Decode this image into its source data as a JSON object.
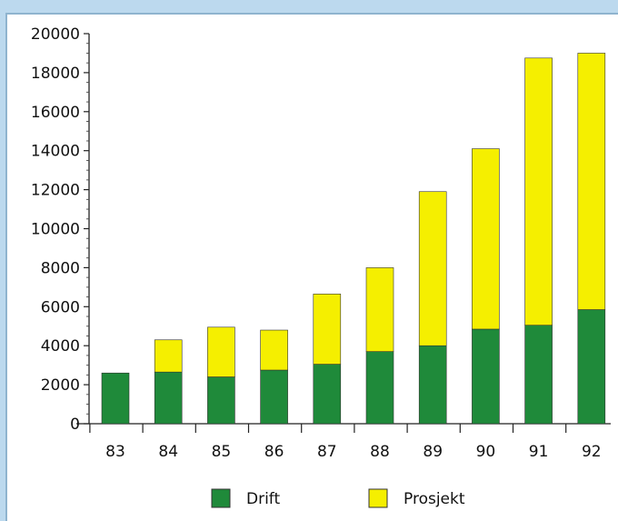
{
  "chart_data": {
    "type": "bar",
    "stacked": true,
    "categories": [
      "83",
      "84",
      "85",
      "86",
      "87",
      "88",
      "89",
      "90",
      "91",
      "92"
    ],
    "series": [
      {
        "name": "Drift",
        "color": "#1f8a3a",
        "values": [
          2600,
          2650,
          2400,
          2750,
          3050,
          3700,
          4000,
          4850,
          5050,
          5850
        ]
      },
      {
        "name": "Prosjekt",
        "color": "#f5ef00",
        "values": [
          0,
          1650,
          2550,
          2050,
          3600,
          4300,
          7900,
          9250,
          13700,
          13150
        ]
      }
    ],
    "ylim": [
      0,
      20000
    ],
    "yticks": [
      "0",
      "2000",
      "4000",
      "6000",
      "8000",
      "10000",
      "12000",
      "14000",
      "16000",
      "18000",
      "20000"
    ],
    "grid": false,
    "legend_position": "bottom"
  }
}
